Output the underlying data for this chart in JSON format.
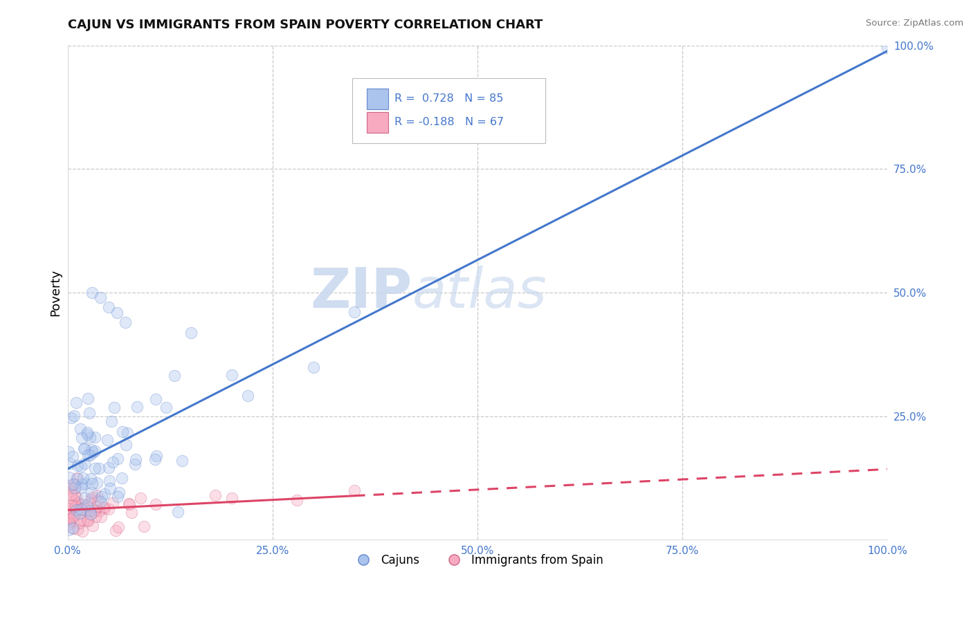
{
  "title": "CAJUN VS IMMIGRANTS FROM SPAIN POVERTY CORRELATION CHART",
  "source": "Source: ZipAtlas.com",
  "ylabel": "Poverty",
  "xlim": [
    0,
    1.0
  ],
  "ylim": [
    0,
    1.0
  ],
  "xtick_labels": [
    "0.0%",
    "25.0%",
    "50.0%",
    "75.0%",
    "100.0%"
  ],
  "ytick_labels": [
    "25.0%",
    "50.0%",
    "75.0%",
    "100.0%"
  ],
  "xtick_vals": [
    0.0,
    0.25,
    0.5,
    0.75,
    1.0
  ],
  "ytick_vals": [
    0.25,
    0.5,
    0.75,
    1.0
  ],
  "grid_color": "#c8c8c8",
  "background_color": "#ffffff",
  "cajun_color": "#aac4ee",
  "cajun_edge_color": "#6688cc",
  "spain_color": "#f8aac0",
  "spain_edge_color": "#cc6688",
  "cajun_line_color": "#4477cc",
  "spain_line_color": "#dd4466",
  "legend_R_cajun": "R =  0.728",
  "legend_N_cajun": "N = 85",
  "legend_R_spain": "R = -0.188",
  "legend_N_spain": "N = 67",
  "watermark_zip": "ZIP",
  "watermark_atlas": "atlas",
  "watermark_color": "#c8d8ee",
  "cajun_R": 0.728,
  "cajun_N": 85,
  "spain_R": -0.188,
  "spain_N": 67,
  "marker_size": 140,
  "marker_alpha": 0.38,
  "line_width": 2.2,
  "tick_color": "#4477cc"
}
